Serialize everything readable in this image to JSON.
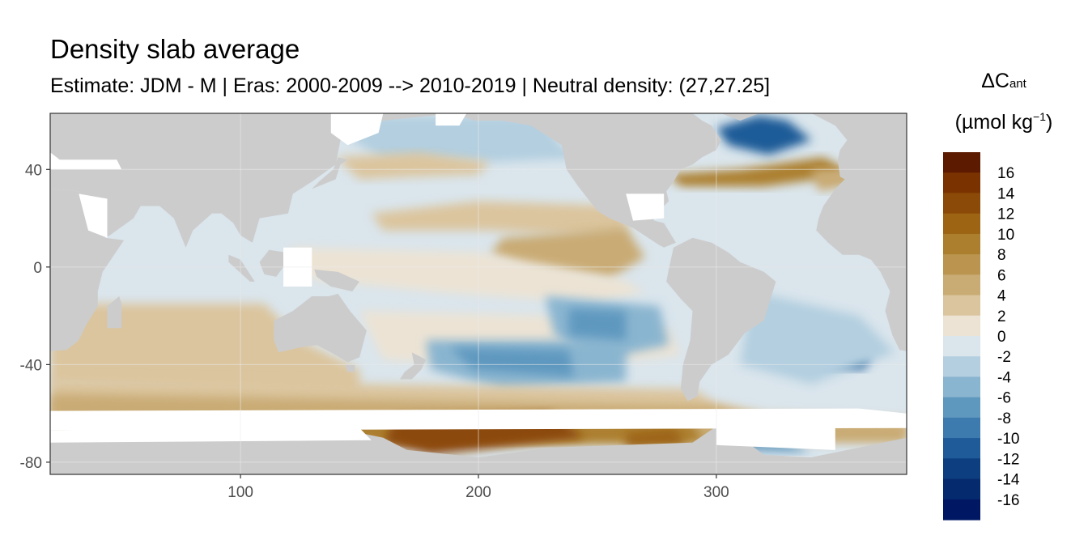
{
  "chart_data": {
    "type": "heatmap",
    "title": "Density slab average",
    "subtitle": "Estimate: JDM - M | Eras: 2000-2009 --> 2010-2019 | Neutral density: (27,27.25]",
    "xlabel": "",
    "ylabel": "",
    "xlim": [
      20,
      380
    ],
    "ylim": [
      -85,
      63
    ],
    "x_ticks": [
      "100",
      "200",
      "300"
    ],
    "x_tick_values": [
      100,
      200,
      300
    ],
    "y_ticks": [
      "40",
      "0",
      "-40",
      "-80"
    ],
    "y_tick_values": [
      40,
      0,
      -40,
      -80
    ],
    "grid": true,
    "land_color": "#cccccc",
    "legend": {
      "title_main": "ΔC",
      "title_sub": "ant",
      "unit_main": "(µmol kg",
      "unit_sup": "−1",
      "unit_end": ")",
      "placement": "right",
      "labels": [
        "16",
        "14",
        "12",
        "10",
        "8",
        "6",
        "4",
        "2",
        "0",
        "-2",
        "-4",
        "-6",
        "-8",
        "-10",
        "-12",
        "-14",
        "-16"
      ],
      "colors": [
        "#5c1a00",
        "#7a3300",
        "#8c4a08",
        "#9c6413",
        "#ac7f2e",
        "#bb9550",
        "#c9ab74",
        "#dbc59e",
        "#ece3d4",
        "#dae5ec",
        "#b3cfe0",
        "#8ab5d0",
        "#5f98bf",
        "#3d7aae",
        "#1e5b98",
        "#0d3f80",
        "#062a6e",
        "#001863"
      ]
    },
    "fields": [
      {
        "name": "background",
        "value": -1
      },
      {
        "name": "north-pacific-subpolar",
        "value": -3
      },
      {
        "name": "north-pacific-east",
        "value": -1
      },
      {
        "name": "kuroshio",
        "value": 3
      },
      {
        "name": "north-pacific-tropical-band",
        "value": 3
      },
      {
        "name": "equatorial-pacific-east",
        "value": 5
      },
      {
        "name": "equatorial-pacific",
        "value": 1
      },
      {
        "name": "south-pacific-subtropical",
        "value": 1
      },
      {
        "name": "east-pacific-south-low",
        "value": -5
      },
      {
        "name": "south-pacific-low",
        "value": -5
      },
      {
        "name": "south-pacific-core",
        "value": -7
      },
      {
        "name": "east-pacific-core",
        "value": -7
      },
      {
        "name": "indian-ocean-south",
        "value": 3
      },
      {
        "name": "southern-ocean-band",
        "value": 3
      },
      {
        "name": "southern-ocean-band-2",
        "value": 5
      },
      {
        "name": "antarctic-slope",
        "value": 9
      },
      {
        "name": "ross-sea",
        "value": 13
      },
      {
        "name": "amundsen",
        "value": 11
      },
      {
        "name": "weddell-sea",
        "value": -7
      },
      {
        "name": "south-atlantic-core",
        "value": -11
      },
      {
        "name": "south-atlantic-low",
        "value": -3
      },
      {
        "name": "gulf-stream",
        "value": 9
      },
      {
        "name": "labrador-sea",
        "value": -11
      },
      {
        "name": "north-atlantic-west",
        "value": -1
      },
      {
        "name": "mediterranean-outflow",
        "value": 5
      }
    ]
  }
}
